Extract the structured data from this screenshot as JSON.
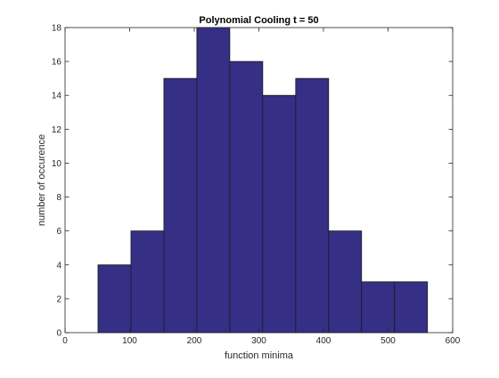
{
  "chart_data": {
    "type": "bar",
    "title": "Polynomial Cooling t = 50",
    "xlabel": "function minima",
    "ylabel": "number of occurence",
    "xlim": [
      0,
      600
    ],
    "ylim": [
      0,
      18
    ],
    "xticks": [
      0,
      100,
      200,
      300,
      400,
      500,
      600
    ],
    "yticks": [
      0,
      2,
      4,
      6,
      8,
      10,
      12,
      14,
      16,
      18
    ],
    "grid": false,
    "bins": [
      {
        "start": 51,
        "end": 102,
        "value": 4
      },
      {
        "start": 102,
        "end": 153,
        "value": 6
      },
      {
        "start": 153,
        "end": 204,
        "value": 15
      },
      {
        "start": 204,
        "end": 255,
        "value": 18
      },
      {
        "start": 255,
        "end": 306,
        "value": 16
      },
      {
        "start": 306,
        "end": 357,
        "value": 14
      },
      {
        "start": 357,
        "end": 408,
        "value": 15
      },
      {
        "start": 408,
        "end": 459,
        "value": 6
      },
      {
        "start": 459,
        "end": 510,
        "value": 3
      },
      {
        "start": 510,
        "end": 561,
        "value": 3
      }
    ],
    "bar_color": "#352f85",
    "edge_color": "#1a1a1a"
  }
}
